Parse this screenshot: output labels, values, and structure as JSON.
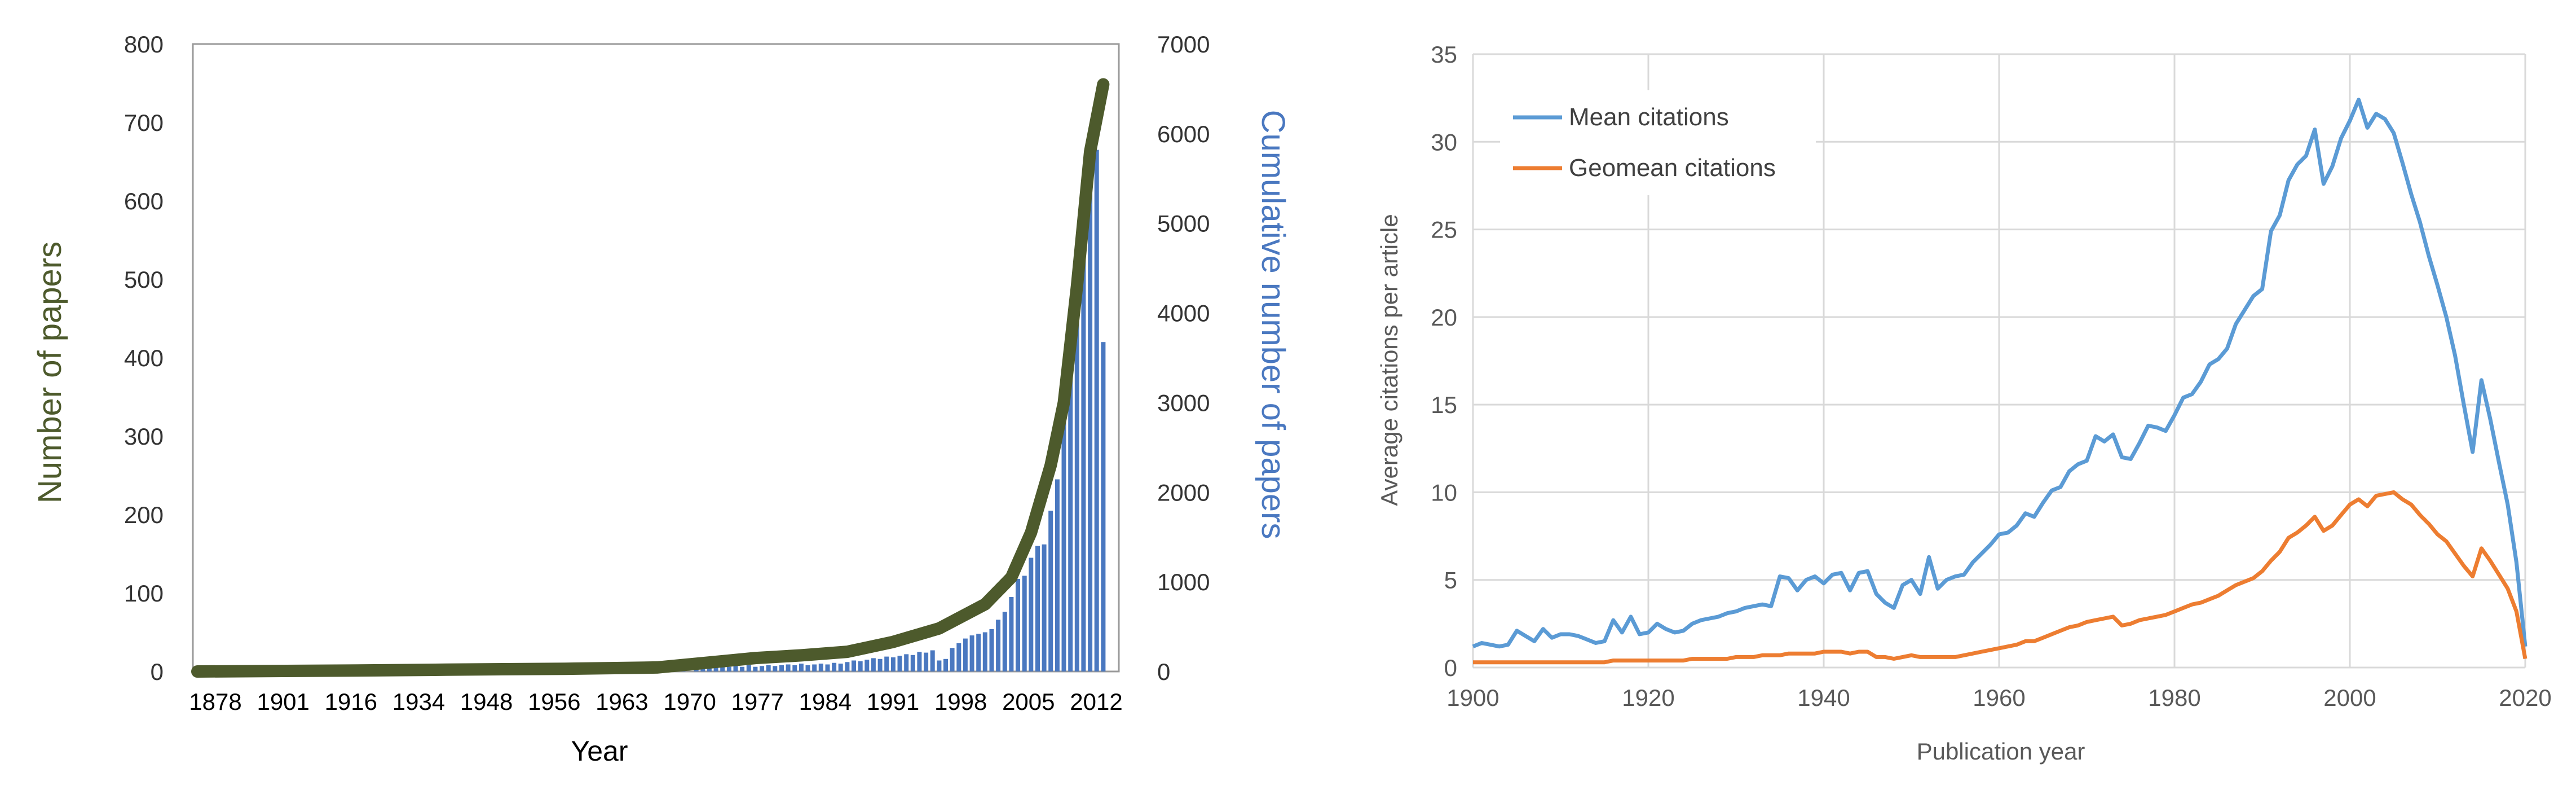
{
  "chart_data": [
    {
      "type": "bar",
      "secondary_type": "line",
      "title": "",
      "xlabel": "Year",
      "ylabel": "Number of papers",
      "y2label": "Cumulative number of papers",
      "ylim": [
        0,
        800
      ],
      "y2lim": [
        0,
        7000
      ],
      "yticks": [
        "0",
        "100",
        "200",
        "300",
        "400",
        "500",
        "600",
        "700",
        "800"
      ],
      "y2ticks": [
        "0",
        "1000",
        "2000",
        "3000",
        "4000",
        "5000",
        "6000",
        "7000"
      ],
      "xtick_labels": [
        "1878",
        "1901",
        "1916",
        "1934",
        "1948",
        "1956",
        "1963",
        "1970",
        "1977",
        "1984",
        "1991",
        "1998",
        "2005",
        "2012"
      ],
      "grid": false,
      "colors": {
        "bars": "#4a78c0",
        "cumulative": "#4d5a2c",
        "ylabel": "#4d5a2c",
        "y2label": "#4a78c0",
        "axis_text": "#333333"
      },
      "series": [
        {
          "name": "Number of papers",
          "axis": "left",
          "x": [
            "1878",
            "1884",
            "1890",
            "1896",
            "1901",
            "1906",
            "1911",
            "1916",
            "1921",
            "1926",
            "1930",
            "1934",
            "1938",
            "1942",
            "1945",
            "1948",
            "1950",
            "1952",
            "1954",
            "1955",
            "1956",
            "1957",
            "1958",
            "1959",
            "1960",
            "1961",
            "1962",
            "1963",
            "1964",
            "1965",
            "1966",
            "1967",
            "1968",
            "1969",
            "1970",
            "1971",
            "1972",
            "1973",
            "1974",
            "1975",
            "1976",
            "1977",
            "1978",
            "1979",
            "1980",
            "1981",
            "1982",
            "1983",
            "1984",
            "1985",
            "1986",
            "1987",
            "1988",
            "1989",
            "1990",
            "1991",
            "1992",
            "1993",
            "1994",
            "1995",
            "1996",
            "1997",
            "1998",
            "1999",
            "2000",
            "2001",
            "2002",
            "2003",
            "2004",
            "2005",
            "2006",
            "2007",
            "2008",
            "2009",
            "2010",
            "2011",
            "2012",
            "2013",
            "2014",
            "2015",
            "2016"
          ],
          "values": [
            1,
            1,
            1,
            1,
            1,
            2,
            1,
            2,
            1,
            2,
            2,
            2,
            3,
            2,
            3,
            3,
            4,
            3,
            5,
            4,
            6,
            5,
            7,
            6,
            7,
            6,
            8,
            6,
            7,
            8,
            7,
            8,
            9,
            8,
            10,
            8,
            9,
            10,
            9,
            11,
            10,
            12,
            14,
            13,
            15,
            17,
            16,
            19,
            18,
            20,
            22,
            21,
            25,
            24,
            27,
            14,
            16,
            30,
            36,
            42,
            46,
            48,
            50,
            54,
            66,
            76,
            95,
            118,
            122,
            145,
            160,
            162,
            205,
            245,
            330,
            445,
            515,
            545,
            685,
            665,
            420
          ]
        },
        {
          "name": "Cumulative number of papers",
          "axis": "right",
          "x": [
            "1878",
            "1901",
            "1916",
            "1934",
            "1948",
            "1956",
            "1963",
            "1970",
            "1977",
            "1984",
            "1991",
            "1998",
            "2002",
            "2005",
            "2008",
            "2010",
            "2012",
            "2014",
            "2016"
          ],
          "values": [
            0,
            10,
            20,
            30,
            45,
            100,
            150,
            180,
            220,
            330,
            480,
            750,
            1050,
            1550,
            2300,
            3000,
            4300,
            5800,
            6550
          ]
        }
      ]
    },
    {
      "type": "line",
      "title": "",
      "xlabel": "Publication year",
      "ylabel": "Average citations per article",
      "xlim": [
        1900,
        2020
      ],
      "ylim": [
        0,
        35
      ],
      "xticks": [
        "1900",
        "1920",
        "1940",
        "1960",
        "1980",
        "2000",
        "2020"
      ],
      "yticks": [
        "0",
        "5",
        "10",
        "15",
        "20",
        "25",
        "30",
        "35"
      ],
      "grid": true,
      "legend": "top-left",
      "colors": {
        "mean": "#5b9bd5",
        "geomean": "#ed7d31",
        "grid": "#d9d9d9",
        "axis_text": "#595959"
      },
      "x": [
        1900,
        1901,
        1902,
        1903,
        1904,
        1905,
        1906,
        1907,
        1908,
        1909,
        1910,
        1911,
        1912,
        1913,
        1914,
        1915,
        1916,
        1917,
        1918,
        1919,
        1920,
        1921,
        1922,
        1923,
        1924,
        1925,
        1926,
        1927,
        1928,
        1929,
        1930,
        1931,
        1932,
        1933,
        1934,
        1935,
        1936,
        1937,
        1938,
        1939,
        1940,
        1941,
        1942,
        1943,
        1944,
        1945,
        1946,
        1947,
        1948,
        1949,
        1950,
        1951,
        1952,
        1953,
        1954,
        1955,
        1956,
        1957,
        1958,
        1959,
        1960,
        1961,
        1962,
        1963,
        1964,
        1965,
        1966,
        1967,
        1968,
        1969,
        1970,
        1971,
        1972,
        1973,
        1974,
        1975,
        1976,
        1977,
        1978,
        1979,
        1980,
        1981,
        1982,
        1983,
        1984,
        1985,
        1986,
        1987,
        1988,
        1989,
        1990,
        1991,
        1992,
        1993,
        1994,
        1995,
        1996,
        1997,
        1998,
        1999,
        2000,
        2001,
        2002,
        2003,
        2004,
        2005,
        2006,
        2007,
        2008,
        2009,
        2010,
        2011,
        2012,
        2013,
        2014,
        2015,
        2016,
        2017,
        2018,
        2019,
        2020
      ],
      "series": [
        {
          "name": "Mean citations",
          "values": [
            1.2,
            1.4,
            1.3,
            1.2,
            1.3,
            2.1,
            1.8,
            1.5,
            2.2,
            1.7,
            1.9,
            1.9,
            1.8,
            1.6,
            1.4,
            1.5,
            2.7,
            2.0,
            2.9,
            1.9,
            2.0,
            2.5,
            2.2,
            2.0,
            2.1,
            2.5,
            2.7,
            2.8,
            2.9,
            3.1,
            3.2,
            3.4,
            3.5,
            3.6,
            3.5,
            5.2,
            5.1,
            4.4,
            5.0,
            5.2,
            4.8,
            5.3,
            5.4,
            4.4,
            5.4,
            5.5,
            4.2,
            3.7,
            3.4,
            4.7,
            5.0,
            4.2,
            6.3,
            4.5,
            5.0,
            5.2,
            5.3,
            6.0,
            6.5,
            7.0,
            7.6,
            7.7,
            8.1,
            8.8,
            8.6,
            9.4,
            10.1,
            10.3,
            11.2,
            11.6,
            11.8,
            13.2,
            12.9,
            13.3,
            12.0,
            11.9,
            12.8,
            13.8,
            13.7,
            13.5,
            14.4,
            15.4,
            15.6,
            16.3,
            17.3,
            17.6,
            18.2,
            19.6,
            20.4,
            21.2,
            21.6,
            24.9,
            25.8,
            27.8,
            28.7,
            29.2,
            30.7,
            27.6,
            28.6,
            30.2,
            31.2,
            32.4,
            30.8,
            31.6,
            31.3,
            30.5,
            28.8,
            27.0,
            25.4,
            23.5,
            21.8,
            20.0,
            17.8,
            15.0,
            12.3,
            16.4,
            14.2,
            11.7,
            9.3,
            6.0,
            1.2
          ]
        },
        {
          "name": "Geomean citations",
          "values": [
            0.3,
            0.3,
            0.3,
            0.3,
            0.3,
            0.3,
            0.3,
            0.3,
            0.3,
            0.3,
            0.3,
            0.3,
            0.3,
            0.3,
            0.3,
            0.3,
            0.4,
            0.4,
            0.4,
            0.4,
            0.4,
            0.4,
            0.4,
            0.4,
            0.4,
            0.5,
            0.5,
            0.5,
            0.5,
            0.5,
            0.6,
            0.6,
            0.6,
            0.7,
            0.7,
            0.7,
            0.8,
            0.8,
            0.8,
            0.8,
            0.9,
            0.9,
            0.9,
            0.8,
            0.9,
            0.9,
            0.6,
            0.6,
            0.5,
            0.6,
            0.7,
            0.6,
            0.6,
            0.6,
            0.6,
            0.6,
            0.7,
            0.8,
            0.9,
            1.0,
            1.1,
            1.2,
            1.3,
            1.5,
            1.5,
            1.7,
            1.9,
            2.1,
            2.3,
            2.4,
            2.6,
            2.7,
            2.8,
            2.9,
            2.4,
            2.5,
            2.7,
            2.8,
            2.9,
            3.0,
            3.2,
            3.4,
            3.6,
            3.7,
            3.9,
            4.1,
            4.4,
            4.7,
            4.9,
            5.1,
            5.5,
            6.1,
            6.6,
            7.4,
            7.7,
            8.1,
            8.6,
            7.8,
            8.1,
            8.7,
            9.3,
            9.6,
            9.2,
            9.8,
            9.9,
            10.0,
            9.6,
            9.3,
            8.7,
            8.2,
            7.6,
            7.2,
            6.5,
            5.8,
            5.2,
            6.8,
            6.1,
            5.3,
            4.5,
            3.2,
            0.5
          ]
        }
      ]
    }
  ]
}
